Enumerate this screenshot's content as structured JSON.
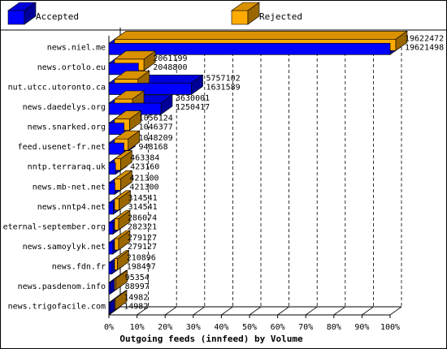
{
  "chart_data": {
    "type": "bar",
    "orientation": "horizontal",
    "style": "3d-overlapping",
    "xlabel": "Outgoing feeds (innfeed) by Volume",
    "xlim": [
      0,
      100
    ],
    "xtick_labels": [
      "0%",
      "10%",
      "20%",
      "30%",
      "40%",
      "50%",
      "60%",
      "70%",
      "80%",
      "90%",
      "100%"
    ],
    "grid": "vertical-dashed",
    "legend_position": "top",
    "max_value": 19622472,
    "categories": [
      "news.niel.me",
      "news.ortolo.eu",
      "nut.utcc.utoronto.ca",
      "news.daedelys.org",
      "news.snarked.org",
      "feed.usenet-fr.net",
      "nntp.terraraq.uk",
      "news.mb-net.net",
      "news.nntp4.net",
      "eternal-september.org",
      "news.samoylyk.net",
      "news.fdn.fr",
      "news.pasdenom.info",
      "news.trigofacile.com"
    ],
    "series": [
      {
        "name": "Accepted",
        "color": "#0000ff",
        "values": [
          19622472,
          2061199,
          5757102,
          3630001,
          1056124,
          1048209,
          463384,
          421300,
          314541,
          286074,
          279127,
          210896,
          95354,
          14982
        ]
      },
      {
        "name": "Rejected",
        "color": "#ffaa00",
        "values": [
          19621498,
          2048800,
          1631589,
          1250417,
          1046377,
          948168,
          423160,
          421300,
          314541,
          282321,
          279127,
          198497,
          88997,
          14982
        ]
      }
    ]
  }
}
